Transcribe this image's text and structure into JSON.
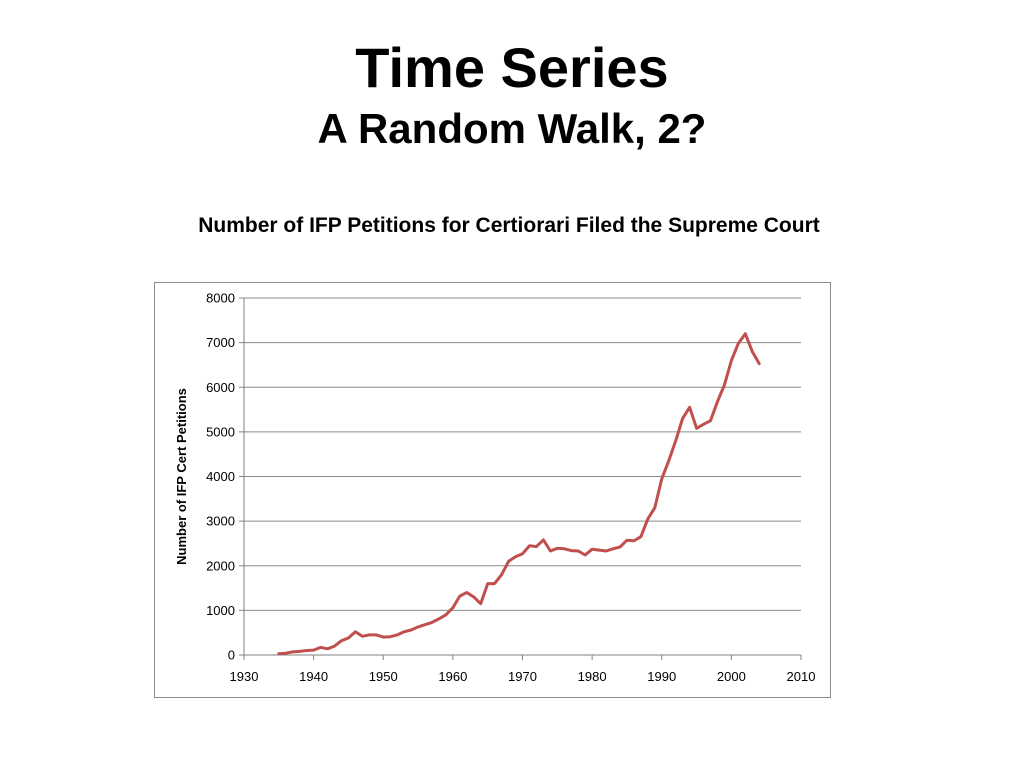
{
  "slide": {
    "title": "Time Series",
    "subtitle": "A Random Walk, 2?",
    "chart_caption": "Number of IFP Petitions for Certiorari Filed the Supreme Court"
  },
  "chart_data": {
    "type": "line",
    "title": "",
    "xlabel": "",
    "ylabel": "Number of IFP Cert Petitions",
    "xlim": [
      1930,
      2010
    ],
    "ylim": [
      0,
      8000
    ],
    "x_ticks": [
      "1930",
      "1940",
      "1950",
      "1960",
      "1970",
      "1980",
      "1990",
      "2000",
      "2010"
    ],
    "y_ticks": [
      "0",
      "1000",
      "2000",
      "3000",
      "4000",
      "5000",
      "6000",
      "7000",
      "8000"
    ],
    "grid": "horizontal",
    "legend": "none",
    "series": [
      {
        "color": "#c0504d",
        "x": [
          1935,
          1936,
          1937,
          1938,
          1939,
          1940,
          1941,
          1942,
          1943,
          1944,
          1945,
          1946,
          1947,
          1948,
          1949,
          1950,
          1951,
          1952,
          1953,
          1954,
          1955,
          1956,
          1957,
          1958,
          1959,
          1960,
          1961,
          1962,
          1963,
          1964,
          1965,
          1966,
          1967,
          1968,
          1969,
          1970,
          1971,
          1972,
          1973,
          1974,
          1975,
          1976,
          1977,
          1978,
          1979,
          1980,
          1981,
          1982,
          1983,
          1984,
          1985,
          1986,
          1987,
          1988,
          1989,
          1990,
          1991,
          1992,
          1993,
          1994,
          1995,
          1996,
          1997,
          1998,
          1999,
          2000,
          2001,
          2002,
          2003,
          2004
        ],
        "y": [
          30,
          40,
          70,
          80,
          100,
          110,
          170,
          140,
          200,
          320,
          380,
          520,
          420,
          450,
          450,
          400,
          410,
          450,
          520,
          560,
          630,
          680,
          730,
          810,
          900,
          1060,
          1320,
          1400,
          1300,
          1150,
          1600,
          1600,
          1800,
          2100,
          2200,
          2270,
          2450,
          2430,
          2580,
          2330,
          2390,
          2380,
          2340,
          2330,
          2240,
          2370,
          2350,
          2330,
          2380,
          2420,
          2570,
          2560,
          2650,
          3050,
          3300,
          3950,
          4350,
          4800,
          5300,
          5550,
          5080,
          5170,
          5250,
          5680,
          6050,
          6600,
          6980,
          7200,
          6800,
          6530
        ]
      }
    ]
  }
}
